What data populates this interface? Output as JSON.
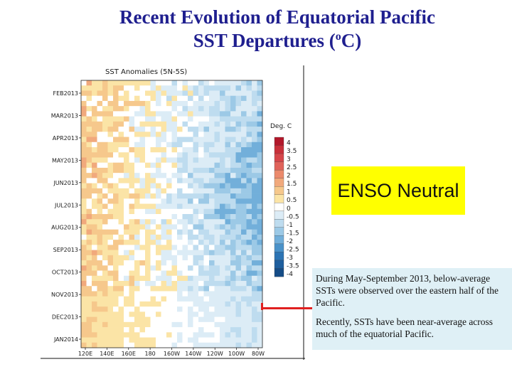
{
  "slide": {
    "title_line1": "Recent Evolution of Equatorial Pacific",
    "title_line2_pre": "SST Departures (",
    "title_superscript": "o",
    "title_line2_post": "C)"
  },
  "callout": {
    "label": "ENSO Neutral",
    "background": "#ffff00"
  },
  "text_box": {
    "background": "#dff0f6",
    "paragraphs": [
      "During May-September 2013, below-average SSTs were observed over the eastern half of the Pacific.",
      "Recently, SSTs have been near-average across much of the equatorial Pacific."
    ]
  },
  "pointer_color": "#e02020",
  "chart_data": {
    "type": "heatmap",
    "title": "SST Anomalies (5N-5S)",
    "x_ticks": [
      "120E",
      "140E",
      "160E",
      "180",
      "160W",
      "140W",
      "120W",
      "100W",
      "80W"
    ],
    "y_ticks": [
      "FEB2013",
      "MAR2013",
      "APR2013",
      "MAY2013",
      "JUN2013",
      "JUL2013",
      "AUG2013",
      "SEP2013",
      "OCT2013",
      "NOV2013",
      "DEC2013",
      "JAN2014"
    ],
    "units_label": "Deg. C",
    "colorbar": [
      {
        "label": "4",
        "color": "#b2182b"
      },
      {
        "label": "3.5",
        "color": "#c8303a"
      },
      {
        "label": "3",
        "color": "#d6464a"
      },
      {
        "label": "2.5",
        "color": "#e0635a"
      },
      {
        "label": "2",
        "color": "#eb8a6c"
      },
      {
        "label": "1.5",
        "color": "#f1a97c"
      },
      {
        "label": "1",
        "color": "#f6c88c"
      },
      {
        "label": "0.5",
        "color": "#fbe4a6"
      },
      {
        "label": "0",
        "color": "#ffffff"
      },
      {
        "label": "-0.5",
        "color": "#dcecf6"
      },
      {
        "label": "-1",
        "color": "#bedcef"
      },
      {
        "label": "-1.5",
        "color": "#9cc9e6"
      },
      {
        "label": "-2",
        "color": "#72afda"
      },
      {
        "label": "-2.5",
        "color": "#4a92c9"
      },
      {
        "label": "-3",
        "color": "#2c74b4"
      },
      {
        "label": "-3.5",
        "color": "#1f5f9e"
      },
      {
        "label": "-4",
        "color": "#154c86"
      }
    ]
  }
}
